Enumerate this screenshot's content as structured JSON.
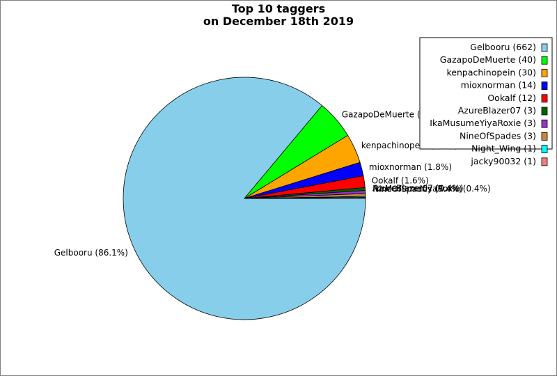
{
  "chart_data": {
    "type": "pie",
    "title": "Top 10 taggers",
    "subtitle": "on December 18th 2019",
    "legend_position": "top-right",
    "slices": [
      {
        "name": "Gelbooru",
        "value": 662,
        "percent_label": "Gelbooru (86.1%)",
        "legend_label": "Gelbooru (662)",
        "color": "#87ceeb"
      },
      {
        "name": "GazapoDeMuerte",
        "value": 40,
        "percent_label": "GazapoDeMuerte (5.2%)",
        "legend_label": "GazapoDeMuerte (40)",
        "color": "#00ff00"
      },
      {
        "name": "kenpachinopein",
        "value": 30,
        "percent_label": "kenpachinopein (3.9%)",
        "legend_label": "kenpachinopein (30)",
        "color": "#ffa500"
      },
      {
        "name": "mioxnorman",
        "value": 14,
        "percent_label": "mioxnorman (1.8%)",
        "legend_label": "mioxnorman (14)",
        "color": "#0000ff"
      },
      {
        "name": "Ookalf",
        "value": 12,
        "percent_label": "Ookalf (1.6%)",
        "legend_label": "Ookalf (12)",
        "color": "#ff0000"
      },
      {
        "name": "AzureBlazer07",
        "value": 3,
        "percent_label": "AzureBlazer07 (0.4%)",
        "legend_label": "AzureBlazer07 (3)",
        "color": "#006400"
      },
      {
        "name": "IkaMusumeYiyaRoxie",
        "value": 3,
        "percent_label": "IkaMusumeYiyaRoxie (0.4%)",
        "legend_label": "IkaMusumeYiyaRoxie (3)",
        "color": "#9932cc"
      },
      {
        "name": "NineOfSpades",
        "value": 3,
        "percent_label": "NineOfSpades (0.4%)",
        "legend_label": "NineOfSpades (3)",
        "color": "#cd853f"
      },
      {
        "name": "Night_Wing",
        "value": 1,
        "percent_label": "Night_Wing (0.1%)",
        "legend_label": "Night_Wing (1)",
        "color": "#00ffff"
      },
      {
        "name": "jacky90032",
        "value": 1,
        "percent_label": "jacky90032 (0.1%)",
        "legend_label": "jacky90032 (1)",
        "color": "#f08080"
      }
    ]
  }
}
